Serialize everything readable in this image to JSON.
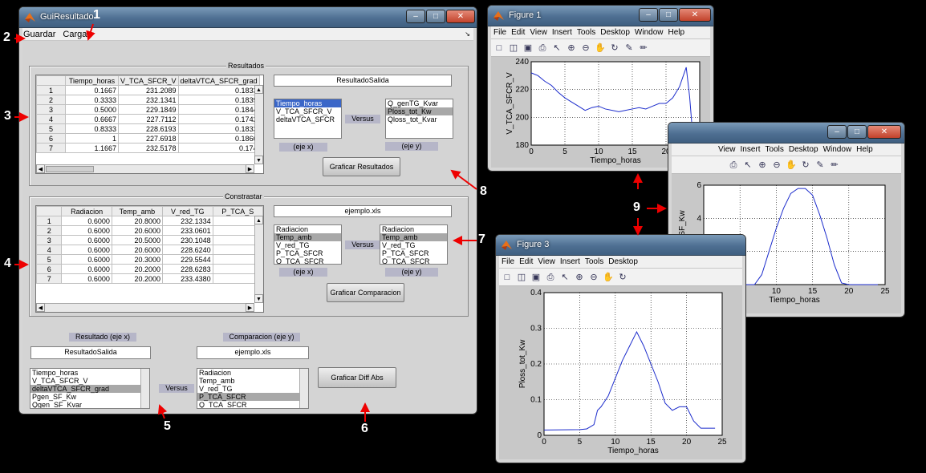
{
  "gui": {
    "title": "GuiResultado",
    "menu": [
      "Guardar",
      "Cargar"
    ],
    "resultados": {
      "title": "Resultados",
      "columns": [
        "Tiempo_horas",
        "V_TCA_SFCR_V",
        "deltaVTCA_SFCR_grad"
      ],
      "rows": [
        [
          "1",
          "0.1667",
          "231.2089",
          "0.1833"
        ],
        [
          "2",
          "0.3333",
          "232.1341",
          "0.1839"
        ],
        [
          "3",
          "0.5000",
          "229.1849",
          "0.1844"
        ],
        [
          "4",
          "0.6667",
          "227.7112",
          "0.1742"
        ],
        [
          "5",
          "0.8333",
          "228.6193",
          "0.1833"
        ],
        [
          "6",
          "1",
          "227.6918",
          "0.1866"
        ],
        [
          "7",
          "1.1667",
          "232.5178",
          "0.174"
        ]
      ],
      "output_name": "ResultadoSalida",
      "list_x": [
        "Tiempo_horas",
        "V_TCA_SFCR_V",
        "deltaVTCA_SFCR"
      ],
      "list_y": [
        "Q_genTG_Kvar",
        "Ploss_tot_Kw",
        "Qloss_tot_Kvar"
      ],
      "versus": "Versus",
      "eje_x": "(eje x)",
      "eje_y": "(eje y)",
      "graficar": "Graficar Resultados"
    },
    "constrastar": {
      "title": "Constrastar",
      "columns": [
        "Radiacion",
        "Temp_amb",
        "V_red_TG",
        "P_TCA_S"
      ],
      "rows": [
        [
          "1",
          "0.6000",
          "20.8000",
          "232.1334"
        ],
        [
          "2",
          "0.6000",
          "20.6000",
          "233.0601"
        ],
        [
          "3",
          "0.6000",
          "20.5000",
          "230.1048"
        ],
        [
          "4",
          "0.6000",
          "20.6000",
          "228.6240"
        ],
        [
          "5",
          "0.6000",
          "20.3000",
          "229.5544"
        ],
        [
          "6",
          "0.6000",
          "20.2000",
          "228.6283"
        ],
        [
          "7",
          "0.6000",
          "20.2000",
          "233.4380"
        ]
      ],
      "file": "ejemplo.xls",
      "list_x": [
        "Radiacion",
        "Temp_amb",
        "V_red_TG",
        "P_TCA_SFCR",
        "Q_TCA_SFCR"
      ],
      "list_y": [
        "Radiacion",
        "Temp_amb",
        "V_red_TG",
        "P_TCA_SFCR",
        "Q_TCA_SFCR"
      ],
      "versus": "Versus",
      "eje_x": "(eje x)",
      "eje_y": "(eje y)",
      "graficar": "Graficar Comparacion"
    },
    "diff": {
      "label_x": "Resultado (eje x)",
      "label_y": "Comparacion (eje y)",
      "edit_x": "ResultadoSalida",
      "edit_y": "ejemplo.xls",
      "list_x": [
        "Tiempo_horas",
        "V_TCA_SFCR_V",
        "deltaVTCA_SFCR_grad",
        "Pgen_SF_Kw",
        "Qgen_SF_Kvar"
      ],
      "list_y": [
        "Radiacion",
        "Temp_amb",
        "V_red_TG",
        "P_TCA_SFCR",
        "Q_TCA_SFCR"
      ],
      "versus": "Versus",
      "graficar": "Graficar Diff Abs"
    }
  },
  "fig_menu": [
    "File",
    "Edit",
    "View",
    "Insert",
    "Tools",
    "Desktop",
    "Window",
    "Help"
  ],
  "figure1": {
    "title": "Figure 1",
    "xlabel": "Tiempo_horas",
    "ylabel": "V_TCA_SFCR_V"
  },
  "figure2": {
    "menu": [
      "View",
      "Insert",
      "Tools",
      "Desktop",
      "Window",
      "Help"
    ],
    "xlabel": "Tiempo_horas",
    "ylabel": "Pgen_SF_Kw"
  },
  "figure3": {
    "title": "Figure 3",
    "menu": [
      "File",
      "Edit",
      "View",
      "Insert",
      "Tools",
      "Desktop"
    ],
    "xlabel": "Tiempo_horas",
    "ylabel": "Ploss_tot_Kw"
  },
  "chart_data": [
    {
      "type": "line",
      "xlabel": "Tiempo_horas",
      "ylabel": "V_TCA_SFCR_V",
      "xlim": [
        0,
        25
      ],
      "ylim": [
        180,
        240
      ],
      "xticks": [
        0,
        5,
        10,
        15,
        20,
        25
      ],
      "yticks": [
        180,
        200,
        220,
        240
      ],
      "grid": true,
      "x": [
        0,
        1,
        2,
        3,
        4,
        5,
        6,
        7,
        8,
        9,
        10,
        11,
        12,
        13,
        14,
        15,
        16,
        17,
        18,
        19,
        20,
        21,
        22,
        23,
        23.5,
        24
      ],
      "y": [
        232,
        230,
        226,
        223,
        218,
        214,
        211,
        208,
        205,
        207,
        208,
        206,
        205,
        204,
        205,
        206,
        207,
        206,
        208,
        210,
        210,
        214,
        222,
        236,
        215,
        185
      ]
    },
    {
      "type": "line",
      "xlabel": "Tiempo_horas",
      "ylabel": "Pgen_SF_Kw",
      "xlim": [
        0,
        25
      ],
      "ylim": [
        0,
        6
      ],
      "xticks": [
        0,
        5,
        10,
        15,
        20,
        25
      ],
      "yticks": [
        0,
        2,
        4,
        6
      ],
      "grid": true,
      "x": [
        0,
        7,
        8,
        9,
        10,
        11,
        12,
        13,
        14,
        15,
        16,
        17,
        18,
        19,
        20,
        24
      ],
      "y": [
        0,
        0,
        0.6,
        2,
        3.4,
        4.6,
        5.5,
        5.8,
        5.8,
        5.4,
        4.2,
        2.8,
        1.2,
        0.1,
        0,
        0
      ]
    },
    {
      "type": "line",
      "xlabel": "Tiempo_horas",
      "ylabel": "Ploss_tot_Kw",
      "xlim": [
        0,
        25
      ],
      "ylim": [
        0,
        0.4
      ],
      "xticks": [
        0,
        5,
        10,
        15,
        20,
        25
      ],
      "yticks": [
        0,
        0.1,
        0.2,
        0.3,
        0.4
      ],
      "grid": true,
      "x": [
        0,
        5,
        6,
        7,
        7.5,
        8,
        9,
        10,
        11,
        12,
        13,
        14,
        15,
        16,
        17,
        18,
        19,
        20,
        21,
        22,
        24
      ],
      "y": [
        0.015,
        0.016,
        0.018,
        0.03,
        0.07,
        0.08,
        0.11,
        0.16,
        0.21,
        0.25,
        0.29,
        0.25,
        0.2,
        0.15,
        0.09,
        0.07,
        0.08,
        0.08,
        0.04,
        0.02,
        0.02
      ]
    }
  ],
  "annotations": [
    "1",
    "2",
    "3",
    "4",
    "5",
    "6",
    "7",
    "8",
    "9"
  ]
}
